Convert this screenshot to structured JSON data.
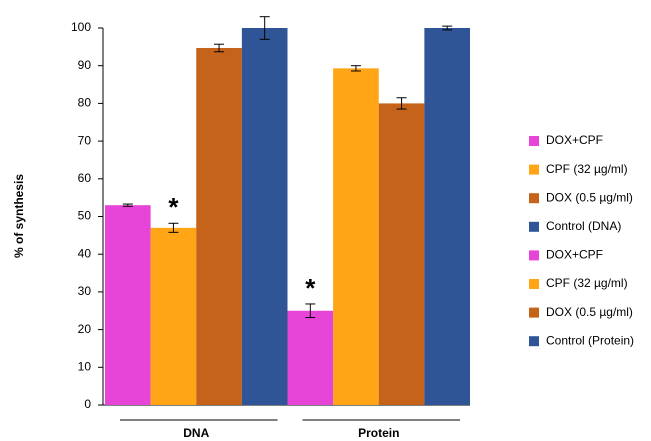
{
  "chart_data": {
    "type": "bar",
    "y_label": "% of synthesis",
    "categories": [
      "DNA",
      "Protein"
    ],
    "ylim": [
      0,
      100
    ],
    "yticks": [
      0,
      10,
      20,
      30,
      40,
      50,
      60,
      70,
      80,
      90,
      100
    ],
    "grid": false,
    "legend": "right",
    "series": [
      {
        "name": "DOX+CPF",
        "color": "#e645d8",
        "values": [
          53,
          null
        ],
        "errors": [
          0.3,
          null
        ],
        "annotations": [
          null,
          null
        ]
      },
      {
        "name": "CPF (32 µg/ml)",
        "color": "#ffa516",
        "values": [
          47,
          null
        ],
        "errors": [
          1.2,
          null
        ],
        "annotations": [
          "*",
          null
        ]
      },
      {
        "name": "DOX (0.5 µg/ml)",
        "color": "#c5631b",
        "values": [
          94.7,
          null
        ],
        "errors": [
          1,
          null
        ],
        "annotations": [
          null,
          null
        ]
      },
      {
        "name": "Control (DNA)",
        "color": "#2f5596",
        "values": [
          100,
          null
        ],
        "errors": [
          3,
          null
        ],
        "annotations": [
          null,
          null
        ]
      },
      {
        "name": "DOX+CPF",
        "color": "#e645d8",
        "values": [
          null,
          25
        ],
        "errors": [
          null,
          1.8
        ],
        "annotations": [
          null,
          "*"
        ]
      },
      {
        "name": "CPF (32 µg/ml)",
        "color": "#ffa516",
        "values": [
          null,
          89.3
        ],
        "errors": [
          null,
          0.7
        ],
        "annotations": [
          null,
          null
        ]
      },
      {
        "name": "DOX (0.5 µg/ml)",
        "color": "#c5631b",
        "values": [
          null,
          80
        ],
        "errors": [
          null,
          1.5
        ],
        "annotations": [
          null,
          null
        ]
      },
      {
        "name": "Control (Protein)",
        "color": "#2f5596",
        "values": [
          null,
          100
        ],
        "errors": [
          null,
          0.5
        ],
        "annotations": [
          null,
          null
        ]
      }
    ]
  }
}
